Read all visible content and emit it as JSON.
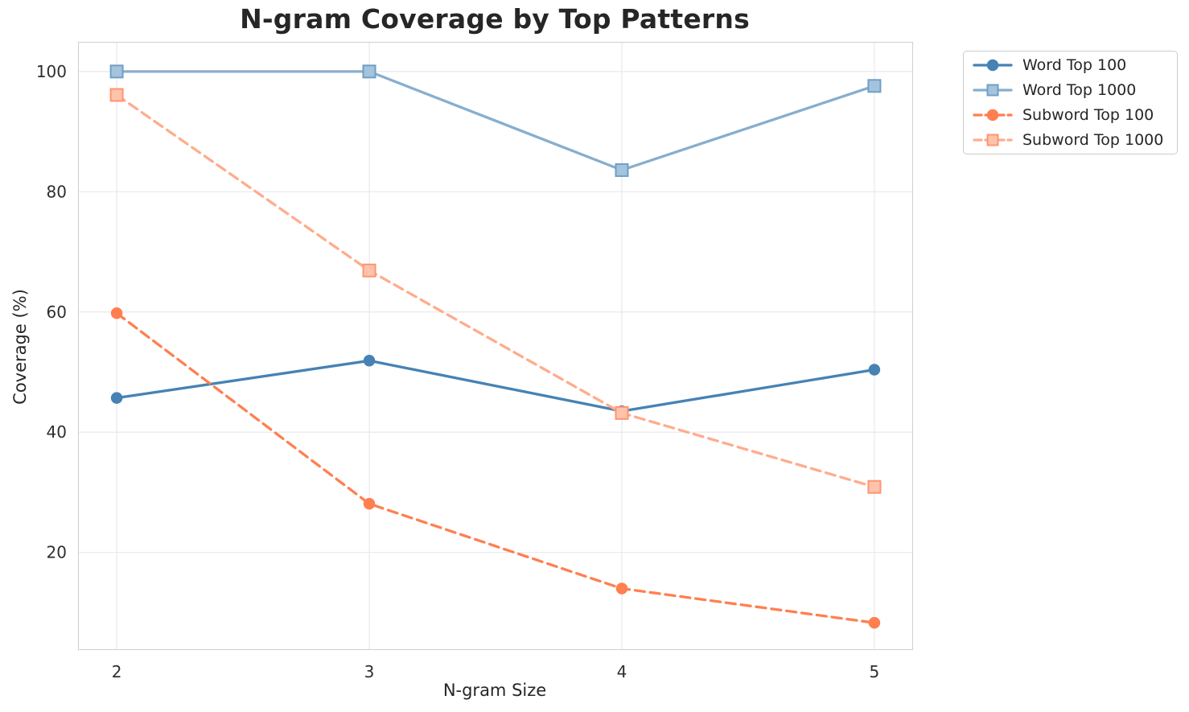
{
  "figure": {
    "title": "N-gram Coverage by Top Patterns"
  },
  "chart_data": {
    "type": "line",
    "title": "N-gram Coverage by Top Patterns",
    "xlabel": "N-gram Size",
    "ylabel": "Coverage (%)",
    "x": [
      2,
      3,
      4,
      5
    ],
    "xtick_labels": [
      "2",
      "3",
      "4",
      "5"
    ],
    "yticks": [
      20,
      40,
      60,
      80,
      100
    ],
    "xlim": [
      1.85,
      5.15
    ],
    "ylim": [
      3.9,
      104.8
    ],
    "grid": true,
    "legend_position": "outside-upper-right",
    "series": [
      {
        "name": "Word Top 100",
        "values": [
          45.7,
          51.9,
          43.5,
          50.4
        ],
        "color": "#4682B4",
        "line_style": "solid",
        "marker": "circle",
        "marker_fill": "#4682B4",
        "marker_edge": "#4682B4"
      },
      {
        "name": "Word Top 1000",
        "values": [
          100,
          100,
          83.6,
          97.6
        ],
        "color": "#87AECE",
        "line_style": "solid",
        "marker": "square",
        "marker_fill": "#A5C3DC",
        "marker_edge": "#6E9FC7"
      },
      {
        "name": "Subword Top 100",
        "values": [
          59.8,
          28.1,
          14.0,
          8.3
        ],
        "color": "#FF7F50",
        "line_style": "dashed",
        "marker": "circle",
        "marker_fill": "#FF7F50",
        "marker_edge": "#FF7F50"
      },
      {
        "name": "Subword Top 1000",
        "values": [
          96.1,
          66.9,
          43.2,
          30.9
        ],
        "color": "#FFAC8D",
        "line_style": "dashed",
        "marker": "square",
        "marker_fill": "#FFC3AB",
        "marker_edge": "#FF9472"
      }
    ]
  },
  "colors": {
    "grid": "#E9E9EC",
    "spine": "#CFCFD4",
    "text": "#262626",
    "tick_text": "#2E2E2E",
    "legend_border": "#CCCCCC",
    "background": "#FFFFFF"
  }
}
